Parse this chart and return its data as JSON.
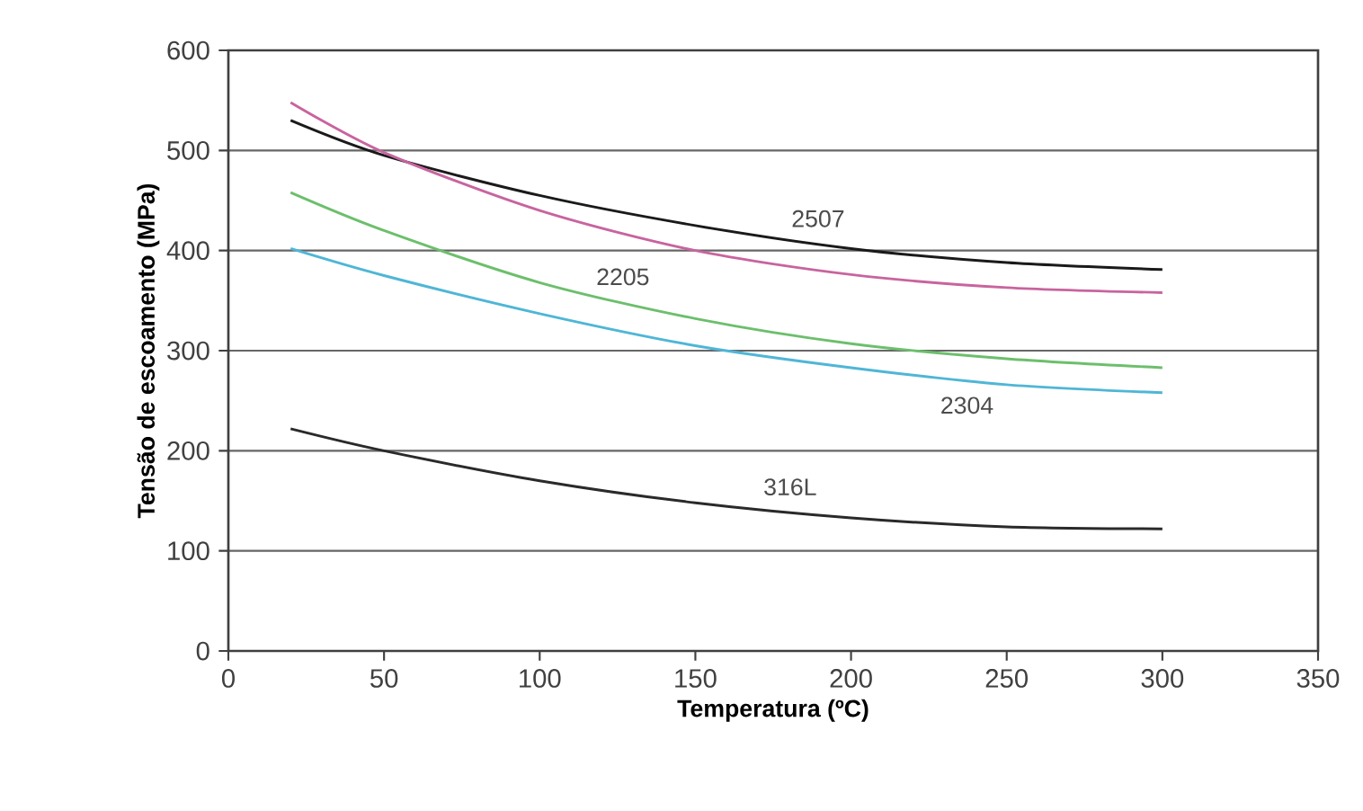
{
  "chart_data": {
    "type": "line",
    "xlabel": "Temperatura (ºC)",
    "ylabel": "Tensão de escoamento (MPa)",
    "x": [
      20,
      50,
      100,
      150,
      200,
      250,
      300
    ],
    "series": [
      {
        "name": "2507",
        "color": "#1a1a1a",
        "values": [
          530,
          495,
          455,
          425,
          402,
          388,
          381
        ]
      },
      {
        "color": "#c8649e",
        "values": [
          548,
          498,
          440,
          400,
          376,
          363,
          358
        ]
      },
      {
        "name": "2205",
        "color": "#6cbf6c",
        "values": [
          458,
          420,
          368,
          332,
          307,
          292,
          283
        ]
      },
      {
        "name": "2304",
        "color": "#4fb6d6",
        "values": [
          402,
          375,
          337,
          305,
          283,
          266,
          258
        ]
      },
      {
        "name": "316L",
        "color": "#2a2a2a",
        "values": [
          222,
          200,
          170,
          148,
          133,
          124,
          122
        ]
      }
    ],
    "xlim": [
      0,
      350
    ],
    "ylim": [
      0,
      600
    ],
    "xticks": [
      0,
      50,
      100,
      150,
      200,
      250,
      300,
      350
    ],
    "yticks": [
      0,
      100,
      200,
      300,
      400,
      500,
      600
    ],
    "grid": "y"
  }
}
